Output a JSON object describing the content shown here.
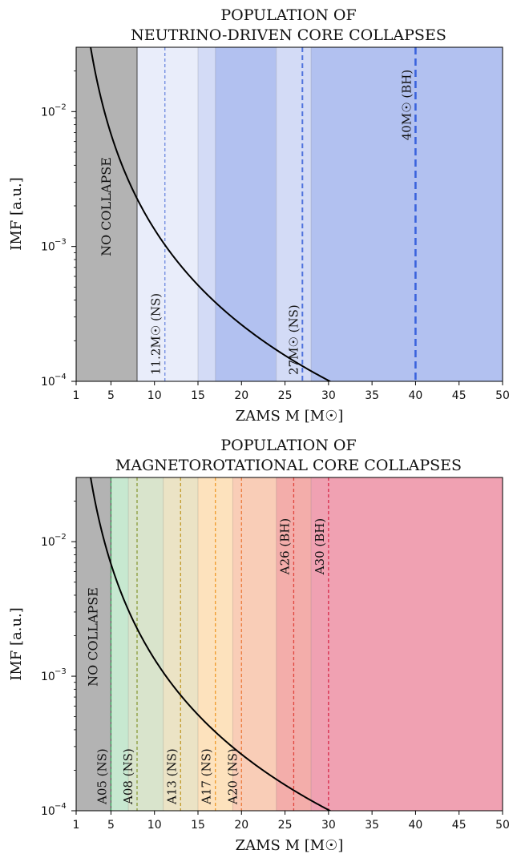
{
  "chart_data": [
    {
      "type": "line",
      "title_lines": [
        "POPULATION OF",
        "NEUTRINO-DRIVEN CORE COLLAPSES"
      ],
      "xlabel": "ZAMS M [M☉]",
      "ylabel": "IMF [a.u.]",
      "xlim": [
        1,
        50
      ],
      "ylim": [
        0.0001,
        0.03
      ],
      "yscale": "log",
      "x_ticks": [
        1,
        5,
        10,
        15,
        20,
        25,
        30,
        35,
        40,
        45,
        50
      ],
      "y_ticks": [
        {
          "value": 0.0001,
          "base": "10",
          "exp": "−4"
        },
        {
          "value": 0.001,
          "base": "10",
          "exp": "−3"
        },
        {
          "value": 0.01,
          "base": "10",
          "exp": "−2"
        }
      ],
      "curve": {
        "name": "IMF",
        "function": "Salpeter power law M^-2.35",
        "norm": 0.3,
        "slope": -2.35,
        "color": "#000000"
      },
      "regions": [
        {
          "from": 1,
          "to": 8,
          "color": "#b3b3b3",
          "label": "NO COLLAPSE"
        },
        {
          "from": 8,
          "to": 15,
          "color": "#e9edfa"
        },
        {
          "from": 15,
          "to": 17,
          "color": "#d3dbf6"
        },
        {
          "from": 17,
          "to": 24,
          "color": "#b2c1f0"
        },
        {
          "from": 24,
          "to": 28,
          "color": "#d3dbf6"
        },
        {
          "from": 28,
          "to": 50,
          "color": "#b2c1f0"
        }
      ],
      "markers": [
        {
          "x": 11.2,
          "label": "11.2M☉ (NS)",
          "color": "#6b88e0",
          "width": 1.3,
          "label_pos": "bottom"
        },
        {
          "x": 27,
          "label": "27M☉ (NS)",
          "color": "#4f73dd",
          "width": 2,
          "label_pos": "bottom"
        },
        {
          "x": 40,
          "label": "40M☉ (BH)",
          "color": "#3a63dd",
          "width": 2.6,
          "label_pos": "top"
        }
      ]
    },
    {
      "type": "line",
      "title_lines": [
        "POPULATION OF",
        "MAGNETOROTATIONAL CORE COLLAPSES"
      ],
      "xlabel": "ZAMS M [M☉]",
      "ylabel": "IMF [a.u.]",
      "xlim": [
        1,
        50
      ],
      "ylim": [
        0.0001,
        0.03
      ],
      "yscale": "log",
      "x_ticks": [
        1,
        5,
        10,
        15,
        20,
        25,
        30,
        35,
        40,
        45,
        50
      ],
      "y_ticks": [
        {
          "value": 0.0001,
          "base": "10",
          "exp": "−4"
        },
        {
          "value": 0.001,
          "base": "10",
          "exp": "−3"
        },
        {
          "value": 0.01,
          "base": "10",
          "exp": "−2"
        }
      ],
      "curve": {
        "name": "IMF",
        "function": "Salpeter power law M^-2.35",
        "norm": 0.3,
        "slope": -2.35,
        "color": "#000000"
      },
      "regions": [
        {
          "from": 1,
          "to": 5,
          "color": "#b3b3b3",
          "label": "NO COLLAPSE"
        },
        {
          "from": 5,
          "to": 7,
          "color": "#c7e8d0"
        },
        {
          "from": 7,
          "to": 11,
          "color": "#d9e4cc"
        },
        {
          "from": 11,
          "to": 15,
          "color": "#ebe3c5"
        },
        {
          "from": 15,
          "to": 19,
          "color": "#fde2bd"
        },
        {
          "from": 19,
          "to": 24,
          "color": "#f9cdb7"
        },
        {
          "from": 24,
          "to": 28,
          "color": "#f3adaa"
        },
        {
          "from": 28,
          "to": 50,
          "color": "#f0a1b2"
        }
      ],
      "markers": [
        {
          "x": 5,
          "label": "A05 (NS)",
          "color": "#3aa55a",
          "width": 1.3,
          "label_pos": "bottom"
        },
        {
          "x": 8,
          "label": "A08 (NS)",
          "color": "#8a9a3a",
          "width": 1.3,
          "label_pos": "bottom"
        },
        {
          "x": 13,
          "label": "A13 (NS)",
          "color": "#c09a2a",
          "width": 1.3,
          "label_pos": "bottom"
        },
        {
          "x": 17,
          "label": "A17 (NS)",
          "color": "#f09a2a",
          "width": 1.3,
          "label_pos": "bottom"
        },
        {
          "x": 20,
          "label": "A20 (NS)",
          "color": "#ec7a3a",
          "width": 1.3,
          "label_pos": "bottom"
        },
        {
          "x": 26,
          "label": "A26 (BH)",
          "color": "#e0443c",
          "width": 1.3,
          "label_pos": "top"
        },
        {
          "x": 30,
          "label": "A30 (BH)",
          "color": "#d62848",
          "width": 1.3,
          "label_pos": "top"
        }
      ]
    }
  ]
}
